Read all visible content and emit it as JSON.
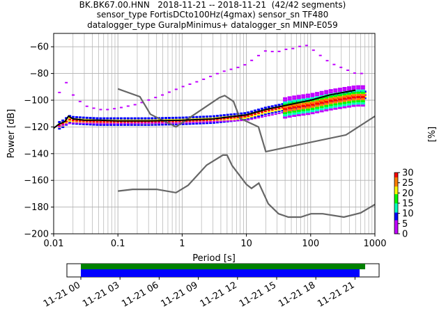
{
  "title_lines": [
    "BK.BK67.00.HNN   2018-11-21 -- 2018-11-21  (42/42 segments)",
    "sensor_type FortisDCto100Hz(4gmax) sensor_sn TF480",
    "datalogger_type GuralpMinimus+ datalogger_sn MINP-E059"
  ],
  "chart_data": {
    "type": "heatmap",
    "description_of_marks": "probabilistic power spectral density",
    "xlabel": "Period [s]",
    "ylabel": "Power [dB]",
    "x_scale": "log",
    "xlim": [
      0.01,
      1000
    ],
    "ylim": [
      -200,
      -50
    ],
    "x_ticks": [
      0.01,
      0.1,
      1,
      10,
      100,
      1000
    ],
    "x_tick_labels": [
      "0.01",
      "0.1",
      "1",
      "10",
      "100",
      "1000"
    ],
    "y_ticks": [
      -200,
      -180,
      -160,
      -140,
      -120,
      -100,
      -80,
      -60
    ],
    "y_tick_labels": [
      "−200",
      "−180",
      "−160",
      "−140",
      "−120",
      "−100",
      "−80",
      "−60"
    ],
    "grid": true,
    "colorbar": {
      "label": "[%]",
      "range": [
        0,
        30
      ],
      "ticks": [
        0,
        5,
        10,
        15,
        20,
        25,
        30
      ],
      "tick_labels": [
        "0",
        "5",
        "10",
        "15",
        "20",
        "25",
        "30"
      ],
      "colors": [
        "#ffffff",
        "#c000ff",
        "#0000ff",
        "#00ffbf",
        "#00ff00",
        "#ffff00",
        "#ff7f00",
        "#ff0000"
      ]
    },
    "series": [
      {
        "role": "noise_model_high",
        "color": "#666666",
        "x": [
          0.1,
          0.22,
          0.32,
          0.8,
          3.8,
          4.6,
          6.3,
          7.9,
          15.4,
          20,
          354.8,
          1000
        ],
        "y": [
          -91.5,
          -97.4,
          -110.5,
          -120,
          -98,
          -96.5,
          -101,
          -113.5,
          -120,
          -138.5,
          -126,
          -112
        ]
      },
      {
        "role": "noise_model_low",
        "color": "#666666",
        "x": [
          0.1,
          0.17,
          0.4,
          0.8,
          1.24,
          2.4,
          4.3,
          5,
          6,
          10,
          12,
          15.6,
          21.9,
          31.6,
          45,
          70,
          101,
          154,
          328,
          600,
          1000
        ],
        "y": [
          -168,
          -166.7,
          -166.7,
          -169.2,
          -163.7,
          -148.6,
          -141.1,
          -141.1,
          -149,
          -163,
          -166,
          -162.1,
          -177.5,
          -185,
          -187.5,
          -187.5,
          -185,
          -185,
          -187.5,
          -184.4,
          -178
        ]
      },
      {
        "role": "mean",
        "color": "#000000",
        "x": [
          0.01,
          0.012,
          0.015,
          0.017,
          0.02,
          0.03,
          0.05,
          0.1,
          0.3,
          1,
          3,
          10,
          20,
          50,
          100,
          200,
          500
        ],
        "y": [
          -121,
          -118,
          -116,
          -112,
          -114,
          -115,
          -115,
          -115.5,
          -115.5,
          -115,
          -114,
          -111,
          -107,
          -103,
          -100,
          -96,
          -92.5
        ]
      },
      {
        "role": "mode_band",
        "color": "#ff0000",
        "x": [
          0.01,
          0.012,
          0.015,
          0.017,
          0.02,
          0.03,
          0.05,
          0.1,
          0.3,
          1,
          3,
          10,
          20,
          50,
          100,
          200,
          500
        ],
        "y": [
          -120,
          -119,
          -117,
          -114,
          -115,
          -115.5,
          -116,
          -116,
          -116,
          -115.5,
          -114.5,
          -112,
          -108,
          -104,
          -102,
          -99,
          -96
        ]
      },
      {
        "role": "percentile_upper",
        "color": "#c000ff",
        "x": [
          0.01,
          0.012,
          0.015,
          0.017,
          0.02,
          0.03,
          0.05,
          0.07,
          0.1,
          0.2,
          0.5,
          1,
          2,
          4,
          8,
          10,
          15,
          20,
          30,
          40,
          60,
          80,
          100,
          200,
          500
        ],
        "y": [
          -92,
          -95,
          -88,
          -85,
          -96,
          -104,
          -107,
          -107,
          -106,
          -103,
          -96,
          -90,
          -85,
          -79,
          -75,
          -73,
          -67,
          -63,
          -64,
          -62,
          -61,
          -58,
          -61,
          -72,
          -80
        ]
      },
      {
        "role": "percentile_lower",
        "color": "#c000ff",
        "x": [
          0.01,
          0.012,
          0.015,
          0.02,
          0.05,
          0.1,
          1,
          10,
          100,
          500,
          700
        ],
        "y": [
          -121,
          -120,
          -118,
          -117,
          -117.5,
          -117.5,
          -117,
          -115,
          -105,
          -98,
          -96
        ]
      }
    ]
  },
  "timeline": {
    "x_tick_labels": [
      "11-21 00",
      "11-21 03",
      "11-21 06",
      "11-21 09",
      "11-21 12",
      "11-21 15",
      "11-21 18",
      "11-21 21"
    ],
    "data_coverage_color": "#008000",
    "psd_coverage_color": "#0000ff"
  }
}
